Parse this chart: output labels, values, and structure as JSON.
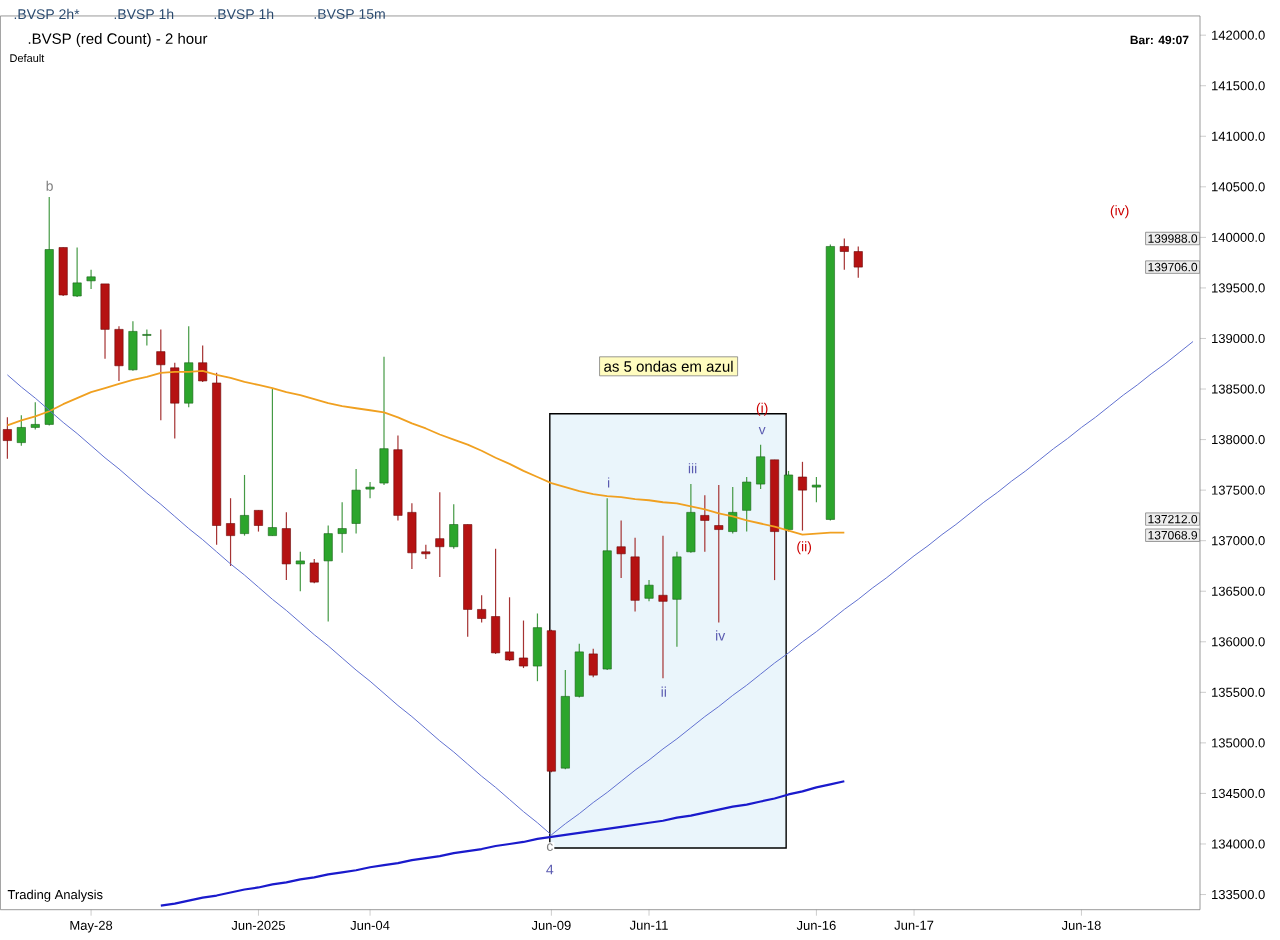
{
  "chart_data": {
    "type": "candlestick",
    "title": ".BVSP (red Count) - 2 hour",
    "subtitle": "Default",
    "categories": [
      null,
      null,
      null,
      null,
      null,
      null,
      "May-28",
      null,
      null,
      null,
      null,
      null,
      null,
      null,
      null,
      null,
      null,
      null,
      "Jun-2025",
      null,
      null,
      null,
      null,
      null,
      null,
      null,
      "Jun-04",
      null,
      null,
      null,
      null,
      null,
      null,
      null,
      null,
      null,
      null,
      null,
      null,
      "Jun-09",
      null,
      null,
      null,
      null,
      null,
      null,
      "Jun-11",
      null,
      null,
      null,
      null,
      null,
      null,
      null,
      null,
      null,
      null,
      null,
      "Jun-16",
      null,
      null,
      null,
      null,
      null,
      null,
      "Jun-17",
      null,
      null,
      null,
      null,
      null,
      null,
      null,
      null,
      null,
      null,
      null,
      "Jun-18",
      null,
      null,
      null,
      null,
      null,
      null,
      null,
      null
    ],
    "ohlc": [
      [
        138100,
        138220,
        137810,
        137990
      ],
      [
        137970,
        138240,
        137940,
        138120
      ],
      [
        138120,
        138370,
        138100,
        138150
      ],
      [
        138150,
        140400,
        138140,
        139880
      ],
      [
        139900,
        139900,
        139420,
        139430
      ],
      [
        139420,
        139900,
        139410,
        139550
      ],
      [
        139570,
        139680,
        139490,
        139610
      ],
      [
        139540,
        139540,
        138800,
        139090
      ],
      [
        139090,
        139120,
        138580,
        138730
      ],
      [
        138690,
        139170,
        138680,
        139070
      ],
      [
        139030,
        139090,
        138930,
        139040
      ],
      [
        138870,
        139090,
        138190,
        138740
      ],
      [
        138710,
        138760,
        138010,
        138360
      ],
      [
        138360,
        139120,
        138320,
        138760
      ],
      [
        138760,
        138930,
        138570,
        138580
      ],
      [
        138560,
        138660,
        136960,
        137150
      ],
      [
        137170,
        137420,
        136750,
        137050
      ],
      [
        137070,
        137650,
        137050,
        137250
      ],
      [
        137300,
        137300,
        137090,
        137150
      ],
      [
        137050,
        138500,
        137050,
        137130
      ],
      [
        137120,
        137280,
        136610,
        136770
      ],
      [
        136770,
        136890,
        136500,
        136800
      ],
      [
        136780,
        136820,
        136580,
        136590
      ],
      [
        136800,
        137150,
        136200,
        137070
      ],
      [
        137070,
        137380,
        136880,
        137120
      ],
      [
        137170,
        137710,
        137070,
        137500
      ],
      [
        137510,
        137580,
        137420,
        137530
      ],
      [
        137570,
        138820,
        137550,
        137910
      ],
      [
        137900,
        138040,
        137200,
        137250
      ],
      [
        137280,
        137370,
        136720,
        136880
      ],
      [
        136890,
        136960,
        136820,
        136870
      ],
      [
        137020,
        137480,
        136640,
        136940
      ],
      [
        136940,
        137360,
        136920,
        137160
      ],
      [
        137160,
        137160,
        136050,
        136320
      ],
      [
        136320,
        136460,
        136190,
        136230
      ],
      [
        136250,
        136920,
        135880,
        135890
      ],
      [
        135900,
        136440,
        135810,
        135820
      ],
      [
        135840,
        136210,
        135740,
        135760
      ],
      [
        135760,
        136280,
        135610,
        136140
      ],
      [
        136110,
        136120,
        134710,
        134720
      ],
      [
        134750,
        135720,
        134740,
        135460
      ],
      [
        135460,
        135980,
        135450,
        135900
      ],
      [
        135880,
        135930,
        135650,
        135670
      ],
      [
        135730,
        137420,
        135720,
        136900
      ],
      [
        136940,
        137200,
        136630,
        136870
      ],
      [
        136840,
        137030,
        136300,
        136410
      ],
      [
        136430,
        136610,
        136400,
        136560
      ],
      [
        136460,
        137050,
        135640,
        136400
      ],
      [
        136420,
        136890,
        135950,
        136840
      ],
      [
        136890,
        137560,
        136880,
        137280
      ],
      [
        137250,
        137450,
        136890,
        137200
      ],
      [
        137150,
        137550,
        136190,
        137110
      ],
      [
        137090,
        137530,
        137070,
        137280
      ],
      [
        137300,
        137630,
        137090,
        137580
      ],
      [
        137560,
        137950,
        137510,
        137830
      ],
      [
        137800,
        137800,
        136610,
        137090
      ],
      [
        137110,
        137690,
        137090,
        137650
      ],
      [
        137630,
        137780,
        137100,
        137500
      ],
      [
        137530,
        137630,
        137380,
        137550
      ],
      [
        137210,
        139930,
        137200,
        139910
      ],
      [
        139910,
        139990,
        139680,
        139860
      ],
      [
        139860,
        139910,
        139600,
        139706
      ],
      null,
      null,
      null,
      null,
      null,
      null,
      null,
      null,
      null,
      null,
      null,
      null,
      null,
      null,
      null,
      null,
      null,
      null,
      null,
      null,
      null,
      null,
      null,
      null
    ],
    "series": [
      {
        "type": "line",
        "color": "#f0a020",
        "values": [
          138140,
          138190,
          138230,
          138280,
          138350,
          138410,
          138470,
          138510,
          138550,
          138590,
          138620,
          138660,
          138670,
          138670,
          138680,
          138640,
          138610,
          138570,
          138540,
          138510,
          138470,
          138440,
          138400,
          138360,
          138330,
          138310,
          138290,
          138270,
          138220,
          138160,
          138110,
          138050,
          138000,
          137950,
          137890,
          137820,
          137760,
          137690,
          137630,
          137570,
          137530,
          137490,
          137460,
          137440,
          137430,
          137410,
          137400,
          137380,
          137370,
          137340,
          137310,
          137270,
          137240,
          137200,
          137170,
          137140,
          137100,
          137060,
          137070,
          137080,
          137080,
          null,
          null,
          null,
          null,
          null,
          null,
          null,
          null,
          null,
          null,
          null,
          null,
          null,
          null,
          null,
          null,
          null,
          null,
          null,
          null,
          null,
          null,
          null,
          null,
          null
        ]
      },
      {
        "type": "line",
        "color": "#1a1acc",
        "values": [
          null,
          null,
          null,
          null,
          null,
          null,
          null,
          null,
          null,
          null,
          null,
          133390,
          133410,
          133440,
          133470,
          133490,
          133520,
          133550,
          133570,
          133600,
          133620,
          133650,
          133670,
          133700,
          133720,
          133740,
          133770,
          133790,
          133810,
          133840,
          133860,
          133880,
          133910,
          133930,
          133950,
          133980,
          134000,
          134020,
          134050,
          134070,
          134090,
          134110,
          134130,
          134150,
          134170,
          134190,
          134210,
          134230,
          134260,
          134280,
          134310,
          134340,
          134370,
          134390,
          134420,
          134450,
          134490,
          134520,
          134560,
          134590,
          134620,
          null,
          null,
          null,
          null,
          null,
          null,
          null,
          null,
          null,
          null,
          null,
          null,
          null,
          null,
          null,
          null,
          null,
          null,
          null,
          null,
          null,
          null,
          null,
          null,
          null
        ]
      },
      {
        "type": "line",
        "color": "#6070d0",
        "values": [
          138640,
          138520,
          138410,
          138290,
          138170,
          138060,
          137940,
          137820,
          137710,
          137590,
          137470,
          137360,
          137240,
          137120,
          137010,
          136890,
          136770,
          136660,
          136540,
          136420,
          136310,
          136190,
          136070,
          135960,
          135840,
          135720,
          135610,
          135490,
          135370,
          135260,
          135140,
          135020,
          134910,
          134790,
          134670,
          134560,
          134440,
          134320,
          134210,
          134090,
          null,
          null,
          null,
          null,
          null,
          null,
          null,
          null,
          null,
          null,
          null,
          null,
          null,
          null,
          null,
          null,
          null,
          null,
          null,
          null,
          null,
          null,
          null,
          null,
          null,
          null,
          null,
          null,
          null,
          null,
          null,
          null,
          null,
          null,
          null,
          null,
          null,
          null,
          null,
          null,
          null,
          null,
          null,
          null,
          null,
          null
        ]
      },
      {
        "type": "line",
        "color": "#6070d0",
        "values": [
          null,
          null,
          null,
          null,
          null,
          null,
          null,
          null,
          null,
          null,
          null,
          null,
          null,
          null,
          null,
          null,
          null,
          null,
          null,
          null,
          null,
          null,
          null,
          null,
          null,
          null,
          null,
          null,
          null,
          null,
          null,
          null,
          null,
          null,
          null,
          null,
          null,
          null,
          null,
          134090,
          134200,
          134300,
          134410,
          134510,
          134620,
          134730,
          134830,
          134940,
          135040,
          135150,
          135260,
          135360,
          135470,
          135570,
          135680,
          135790,
          135890,
          136000,
          136100,
          136210,
          136320,
          136420,
          136530,
          136630,
          136740,
          136850,
          136950,
          137060,
          137160,
          137270,
          137380,
          137480,
          137590,
          137690,
          137800,
          137910,
          138010,
          138120,
          138220,
          138330,
          138440,
          138540,
          138650,
          138750,
          138860,
          138970
        ]
      }
    ],
    "annotations": [
      ".BVSP 2h*",
      ".BVSP 1h",
      ".BVSP 1h",
      ".BVSP 15m",
      "Bar: 49:07",
      "Trading Analysis",
      "b",
      "c",
      "4",
      "i",
      "ii",
      "iii",
      "iv",
      "v",
      "(i)",
      "(ii)",
      "(iv)",
      "139988.0",
      "139706.0",
      "137212.0",
      "137068.9",
      "as 5 ondas em azul"
    ],
    "ylim": [
      133350,
      142190
    ],
    "yticks": [
      {
        "value": 133500,
        "label": "133500.0"
      },
      {
        "value": 134000,
        "label": "134000.0"
      },
      {
        "value": 134500,
        "label": "134500.0"
      },
      {
        "value": 135000,
        "label": "135000.0"
      },
      {
        "value": 135500,
        "label": "135500.0"
      },
      {
        "value": 136000,
        "label": "136000.0"
      },
      {
        "value": 136500,
        "label": "136500.0"
      },
      {
        "value": 137000,
        "label": "137000.0"
      },
      {
        "value": 137500,
        "label": "137500.0"
      },
      {
        "value": 138000,
        "label": "138000.0"
      },
      {
        "value": 138500,
        "label": "138500.0"
      },
      {
        "value": 139000,
        "label": "139000.0"
      },
      {
        "value": 139500,
        "label": "139500.0"
      },
      {
        "value": 140000,
        "label": "140000.0"
      },
      {
        "value": 140500,
        "label": "140500.0"
      },
      {
        "value": 141000,
        "label": "141000.0"
      },
      {
        "value": 141500,
        "label": "141500.0"
      },
      {
        "value": 142000,
        "label": "142000.0"
      }
    ]
  }
}
